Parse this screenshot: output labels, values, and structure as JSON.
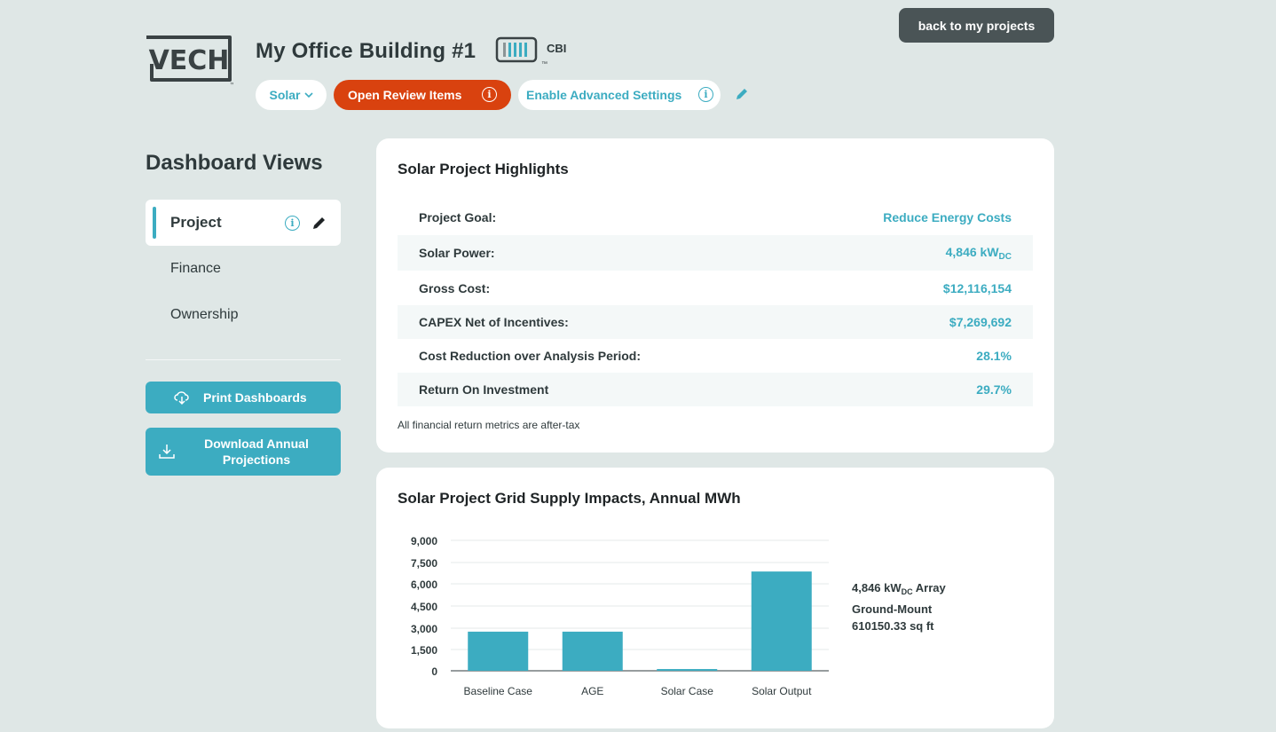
{
  "header": {
    "logo_text": "VECH",
    "project_title": "My Office Building #1",
    "badge_text": "CBI",
    "back_label": "back to my projects",
    "solar_label": "Solar",
    "review_label": "Open Review Items",
    "advanced_label": "Enable Advanced Settings",
    "accent_color": "#3cacc1",
    "alert_color": "#d9420f"
  },
  "sidebar": {
    "title": "Dashboard Views",
    "items": [
      {
        "label": "Project",
        "active": true
      },
      {
        "label": "Finance",
        "active": false
      },
      {
        "label": "Ownership",
        "active": false
      }
    ],
    "print_label": "Print Dashboards",
    "download_label": "Download Annual Projections"
  },
  "highlights": {
    "title": "Solar Project Highlights",
    "rows": [
      {
        "key": "Project Goal:",
        "value": "Reduce Energy Costs"
      },
      {
        "key": "Solar Power:",
        "value": "4,846 kW",
        "sub": "DC"
      },
      {
        "key": "Gross Cost:",
        "value": "$12,116,154"
      },
      {
        "key": "CAPEX Net of Incentives:",
        "value": "$7,269,692"
      },
      {
        "key": "Cost Reduction over Analysis Period:",
        "value": "28.1%"
      },
      {
        "key": "Return On Investment",
        "value": "29.7%"
      }
    ],
    "footnote": "All financial return metrics are after-tax"
  },
  "grid_card": {
    "title": "Solar Project Grid Supply Impacts, Annual MWh",
    "array_line1_value": "4,846 kW",
    "array_line1_sub": "DC",
    "array_line1_suffix": "Array",
    "array_line2": "Ground-Mount",
    "array_line3": "610150.33 sq ft"
  },
  "chart_data": {
    "type": "bar",
    "categories": [
      "Baseline Case",
      "AGE",
      "Solar Case",
      "Solar Output"
    ],
    "values": [
      2700,
      2700,
      120,
      6850
    ],
    "yticks": [
      "0",
      "1,500",
      "3,000",
      "4,500",
      "6,000",
      "7,500",
      "9,000"
    ],
    "ylim": [
      0,
      9000
    ],
    "grid": true,
    "bar_color": "#3cacc1"
  }
}
